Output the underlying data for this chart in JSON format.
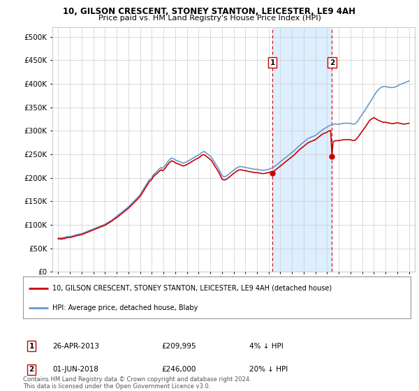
{
  "title": "10, GILSON CRESCENT, STONEY STANTON, LEICESTER, LE9 4AH",
  "subtitle": "Price paid vs. HM Land Registry's House Price Index (HPI)",
  "legend_line1": "10, GILSON CRESCENT, STONEY STANTON, LEICESTER, LE9 4AH (detached house)",
  "legend_line2": "HPI: Average price, detached house, Blaby",
  "annotation1_label": "1",
  "annotation1_date": "26-APR-2013",
  "annotation1_price": "£209,995",
  "annotation1_hpi": "4% ↓ HPI",
  "annotation2_label": "2",
  "annotation2_date": "01-JUN-2018",
  "annotation2_price": "£246,000",
  "annotation2_hpi": "20% ↓ HPI",
  "footer": "Contains HM Land Registry data © Crown copyright and database right 2024.\nThis data is licensed under the Open Government Licence v3.0.",
  "sale1_x": 2013.32,
  "sale1_y": 209995,
  "sale2_x": 2018.42,
  "sale2_y": 246000,
  "shade_xmin": 2013.32,
  "shade_xmax": 2018.42,
  "shade_color": "#ddeeff",
  "hpi_color": "#6699cc",
  "price_color": "#cc0000",
  "vline_color": "#cc0000",
  "vline_style": "--",
  "background_color": "#ffffff",
  "grid_color": "#cccccc",
  "ylim": [
    0,
    520000
  ],
  "xlim_left": 1994.5,
  "xlim_right": 2025.5,
  "yticks": [
    0,
    50000,
    100000,
    150000,
    200000,
    250000,
    300000,
    350000,
    400000,
    450000,
    500000
  ],
  "xticks": [
    1995,
    1996,
    1997,
    1998,
    1999,
    2000,
    2001,
    2002,
    2003,
    2004,
    2005,
    2006,
    2007,
    2008,
    2009,
    2010,
    2011,
    2012,
    2013,
    2014,
    2015,
    2016,
    2017,
    2018,
    2019,
    2020,
    2021,
    2022,
    2023,
    2024,
    2025
  ],
  "hpi_data": [
    [
      1995.0,
      72000
    ],
    [
      1995.1,
      71500
    ],
    [
      1995.2,
      72500
    ],
    [
      1995.3,
      71000
    ],
    [
      1995.4,
      73000
    ],
    [
      1995.5,
      72000
    ],
    [
      1995.6,
      74000
    ],
    [
      1995.7,
      73500
    ],
    [
      1995.8,
      75000
    ],
    [
      1995.9,
      74500
    ],
    [
      1996.0,
      75000
    ],
    [
      1996.2,
      76000
    ],
    [
      1996.4,
      77500
    ],
    [
      1996.6,
      79000
    ],
    [
      1996.8,
      80000
    ],
    [
      1997.0,
      81000
    ],
    [
      1997.2,
      83000
    ],
    [
      1997.4,
      85000
    ],
    [
      1997.6,
      87000
    ],
    [
      1997.8,
      89000
    ],
    [
      1998.0,
      91000
    ],
    [
      1998.2,
      93000
    ],
    [
      1998.4,
      95000
    ],
    [
      1998.6,
      97000
    ],
    [
      1998.8,
      99000
    ],
    [
      1999.0,
      101000
    ],
    [
      1999.2,
      104000
    ],
    [
      1999.4,
      107000
    ],
    [
      1999.6,
      110000
    ],
    [
      1999.8,
      114000
    ],
    [
      2000.0,
      118000
    ],
    [
      2000.2,
      122000
    ],
    [
      2000.4,
      126000
    ],
    [
      2000.6,
      130000
    ],
    [
      2000.8,
      134000
    ],
    [
      2001.0,
      138000
    ],
    [
      2001.2,
      143000
    ],
    [
      2001.4,
      148000
    ],
    [
      2001.6,
      153000
    ],
    [
      2001.8,
      158000
    ],
    [
      2002.0,
      164000
    ],
    [
      2002.2,
      172000
    ],
    [
      2002.4,
      180000
    ],
    [
      2002.6,
      188000
    ],
    [
      2002.8,
      196000
    ],
    [
      2003.0,
      200000
    ],
    [
      2003.1,
      205000
    ],
    [
      2003.2,
      208000
    ],
    [
      2003.3,
      210000
    ],
    [
      2003.4,
      212000
    ],
    [
      2003.5,
      215000
    ],
    [
      2003.6,
      218000
    ],
    [
      2003.7,
      220000
    ],
    [
      2003.8,
      222000
    ],
    [
      2003.9,
      220000
    ],
    [
      2004.0,
      222000
    ],
    [
      2004.1,
      225000
    ],
    [
      2004.2,
      228000
    ],
    [
      2004.3,
      232000
    ],
    [
      2004.4,
      235000
    ],
    [
      2004.5,
      238000
    ],
    [
      2004.6,
      240000
    ],
    [
      2004.7,
      242000
    ],
    [
      2004.8,
      241000
    ],
    [
      2004.9,
      240000
    ],
    [
      2005.0,
      238000
    ],
    [
      2005.1,
      237000
    ],
    [
      2005.2,
      236000
    ],
    [
      2005.3,
      235000
    ],
    [
      2005.4,
      234000
    ],
    [
      2005.5,
      233000
    ],
    [
      2005.6,
      232000
    ],
    [
      2005.7,
      231000
    ],
    [
      2005.8,
      232000
    ],
    [
      2005.9,
      233000
    ],
    [
      2006.0,
      234000
    ],
    [
      2006.2,
      237000
    ],
    [
      2006.4,
      240000
    ],
    [
      2006.6,
      243000
    ],
    [
      2006.8,
      246000
    ],
    [
      2007.0,
      248000
    ],
    [
      2007.1,
      250000
    ],
    [
      2007.2,
      252000
    ],
    [
      2007.3,
      254000
    ],
    [
      2007.4,
      255000
    ],
    [
      2007.5,
      256000
    ],
    [
      2007.6,
      254000
    ],
    [
      2007.7,
      252000
    ],
    [
      2007.8,
      250000
    ],
    [
      2007.9,
      248000
    ],
    [
      2008.0,
      246000
    ],
    [
      2008.1,
      244000
    ],
    [
      2008.2,
      240000
    ],
    [
      2008.3,
      236000
    ],
    [
      2008.4,
      232000
    ],
    [
      2008.5,
      228000
    ],
    [
      2008.6,
      224000
    ],
    [
      2008.7,
      220000
    ],
    [
      2008.8,
      215000
    ],
    [
      2008.9,
      210000
    ],
    [
      2009.0,
      205000
    ],
    [
      2009.1,
      203000
    ],
    [
      2009.2,
      202000
    ],
    [
      2009.3,
      203000
    ],
    [
      2009.4,
      204000
    ],
    [
      2009.5,
      206000
    ],
    [
      2009.6,
      208000
    ],
    [
      2009.7,
      210000
    ],
    [
      2009.8,
      212000
    ],
    [
      2009.9,
      214000
    ],
    [
      2010.0,
      216000
    ],
    [
      2010.2,
      220000
    ],
    [
      2010.4,
      223000
    ],
    [
      2010.6,
      224000
    ],
    [
      2010.8,
      223000
    ],
    [
      2011.0,
      222000
    ],
    [
      2011.2,
      221000
    ],
    [
      2011.4,
      220000
    ],
    [
      2011.6,
      219000
    ],
    [
      2011.8,
      218000
    ],
    [
      2012.0,
      218000
    ],
    [
      2012.2,
      217000
    ],
    [
      2012.4,
      216000
    ],
    [
      2012.6,
      216000
    ],
    [
      2012.8,
      217000
    ],
    [
      2013.0,
      218000
    ],
    [
      2013.1,
      219000
    ],
    [
      2013.2,
      220000
    ],
    [
      2013.32,
      221000
    ],
    [
      2013.4,
      222000
    ],
    [
      2013.5,
      224000
    ],
    [
      2013.6,
      226000
    ],
    [
      2013.7,
      228000
    ],
    [
      2013.8,
      230000
    ],
    [
      2013.9,
      232000
    ],
    [
      2014.0,
      234000
    ],
    [
      2014.2,
      238000
    ],
    [
      2014.4,
      242000
    ],
    [
      2014.6,
      246000
    ],
    [
      2014.8,
      250000
    ],
    [
      2015.0,
      254000
    ],
    [
      2015.2,
      258000
    ],
    [
      2015.4,
      263000
    ],
    [
      2015.6,
      268000
    ],
    [
      2015.8,
      272000
    ],
    [
      2016.0,
      276000
    ],
    [
      2016.2,
      280000
    ],
    [
      2016.4,
      284000
    ],
    [
      2016.6,
      286000
    ],
    [
      2016.8,
      288000
    ],
    [
      2017.0,
      290000
    ],
    [
      2017.2,
      294000
    ],
    [
      2017.4,
      298000
    ],
    [
      2017.6,
      302000
    ],
    [
      2017.8,
      305000
    ],
    [
      2018.0,
      308000
    ],
    [
      2018.1,
      310000
    ],
    [
      2018.2,
      311000
    ],
    [
      2018.3,
      312000
    ],
    [
      2018.42,
      312000
    ],
    [
      2018.5,
      313000
    ],
    [
      2018.6,
      314000
    ],
    [
      2018.7,
      315000
    ],
    [
      2018.8,
      314000
    ],
    [
      2018.9,
      314000
    ],
    [
      2019.0,
      314000
    ],
    [
      2019.2,
      315000
    ],
    [
      2019.4,
      316000
    ],
    [
      2019.6,
      316000
    ],
    [
      2019.8,
      316000
    ],
    [
      2020.0,
      316000
    ],
    [
      2020.2,
      314000
    ],
    [
      2020.4,
      315000
    ],
    [
      2020.6,
      320000
    ],
    [
      2020.8,
      328000
    ],
    [
      2021.0,
      335000
    ],
    [
      2021.2,
      342000
    ],
    [
      2021.4,
      350000
    ],
    [
      2021.6,
      358000
    ],
    [
      2021.8,
      366000
    ],
    [
      2022.0,
      374000
    ],
    [
      2022.2,
      382000
    ],
    [
      2022.4,
      388000
    ],
    [
      2022.6,
      392000
    ],
    [
      2022.8,
      394000
    ],
    [
      2023.0,
      394000
    ],
    [
      2023.2,
      393000
    ],
    [
      2023.4,
      392000
    ],
    [
      2023.6,
      392000
    ],
    [
      2023.8,
      393000
    ],
    [
      2024.0,
      395000
    ],
    [
      2024.2,
      398000
    ],
    [
      2024.4,
      400000
    ],
    [
      2024.6,
      402000
    ],
    [
      2024.8,
      404000
    ],
    [
      2025.0,
      406000
    ]
  ],
  "price_data": [
    [
      1995.0,
      70000
    ],
    [
      1995.1,
      69500
    ],
    [
      1995.2,
      70500
    ],
    [
      1995.3,
      69000
    ],
    [
      1995.4,
      71000
    ],
    [
      1995.5,
      70000
    ],
    [
      1995.6,
      72000
    ],
    [
      1995.7,
      71500
    ],
    [
      1995.8,
      73000
    ],
    [
      1995.9,
      72500
    ],
    [
      1996.0,
      73000
    ],
    [
      1996.2,
      74000
    ],
    [
      1996.4,
      75500
    ],
    [
      1996.6,
      77000
    ],
    [
      1996.8,
      78000
    ],
    [
      1997.0,
      79000
    ],
    [
      1997.2,
      81000
    ],
    [
      1997.4,
      83000
    ],
    [
      1997.6,
      85000
    ],
    [
      1997.8,
      87000
    ],
    [
      1998.0,
      89000
    ],
    [
      1998.2,
      91000
    ],
    [
      1998.4,
      93000
    ],
    [
      1998.6,
      95000
    ],
    [
      1998.8,
      97000
    ],
    [
      1999.0,
      99000
    ],
    [
      1999.2,
      102000
    ],
    [
      1999.4,
      105000
    ],
    [
      1999.6,
      108000
    ],
    [
      1999.8,
      112000
    ],
    [
      2000.0,
      115000
    ],
    [
      2000.2,
      119000
    ],
    [
      2000.4,
      123000
    ],
    [
      2000.6,
      127000
    ],
    [
      2000.8,
      131000
    ],
    [
      2001.0,
      135000
    ],
    [
      2001.2,
      140000
    ],
    [
      2001.4,
      145000
    ],
    [
      2001.6,
      150000
    ],
    [
      2001.8,
      155000
    ],
    [
      2002.0,
      160000
    ],
    [
      2002.2,
      168000
    ],
    [
      2002.4,
      176000
    ],
    [
      2002.6,
      184000
    ],
    [
      2002.8,
      192000
    ],
    [
      2003.0,
      196000
    ],
    [
      2003.1,
      201000
    ],
    [
      2003.2,
      204000
    ],
    [
      2003.3,
      206000
    ],
    [
      2003.4,
      208000
    ],
    [
      2003.5,
      210000
    ],
    [
      2003.6,
      213000
    ],
    [
      2003.7,
      215000
    ],
    [
      2003.8,
      217000
    ],
    [
      2003.9,
      215000
    ],
    [
      2004.0,
      216000
    ],
    [
      2004.1,
      219000
    ],
    [
      2004.2,
      222000
    ],
    [
      2004.3,
      226000
    ],
    [
      2004.4,
      229000
    ],
    [
      2004.5,
      232000
    ],
    [
      2004.6,
      234000
    ],
    [
      2004.7,
      236000
    ],
    [
      2004.8,
      235000
    ],
    [
      2004.9,
      234000
    ],
    [
      2005.0,
      232000
    ],
    [
      2005.1,
      231000
    ],
    [
      2005.2,
      230000
    ],
    [
      2005.3,
      229000
    ],
    [
      2005.4,
      228000
    ],
    [
      2005.5,
      227000
    ],
    [
      2005.6,
      226000
    ],
    [
      2005.7,
      225000
    ],
    [
      2005.8,
      226000
    ],
    [
      2005.9,
      227000
    ],
    [
      2006.0,
      228000
    ],
    [
      2006.2,
      231000
    ],
    [
      2006.4,
      234000
    ],
    [
      2006.6,
      237000
    ],
    [
      2006.8,
      240000
    ],
    [
      2007.0,
      242000
    ],
    [
      2007.1,
      244000
    ],
    [
      2007.2,
      246000
    ],
    [
      2007.3,
      248000
    ],
    [
      2007.4,
      249000
    ],
    [
      2007.5,
      249000
    ],
    [
      2007.6,
      247000
    ],
    [
      2007.7,
      245000
    ],
    [
      2007.8,
      243000
    ],
    [
      2007.9,
      241000
    ],
    [
      2008.0,
      239000
    ],
    [
      2008.1,
      237000
    ],
    [
      2008.2,
      233000
    ],
    [
      2008.3,
      229000
    ],
    [
      2008.4,
      225000
    ],
    [
      2008.5,
      221000
    ],
    [
      2008.6,
      217000
    ],
    [
      2008.7,
      213000
    ],
    [
      2008.8,
      208000
    ],
    [
      2008.9,
      203000
    ],
    [
      2009.0,
      198000
    ],
    [
      2009.1,
      196000
    ],
    [
      2009.2,
      195000
    ],
    [
      2009.3,
      196000
    ],
    [
      2009.4,
      197000
    ],
    [
      2009.5,
      199000
    ],
    [
      2009.6,
      201000
    ],
    [
      2009.7,
      203000
    ],
    [
      2009.8,
      205000
    ],
    [
      2009.9,
      207000
    ],
    [
      2010.0,
      209000
    ],
    [
      2010.2,
      213000
    ],
    [
      2010.4,
      216000
    ],
    [
      2010.6,
      217000
    ],
    [
      2010.8,
      216000
    ],
    [
      2011.0,
      215000
    ],
    [
      2011.2,
      214000
    ],
    [
      2011.4,
      213000
    ],
    [
      2011.6,
      212000
    ],
    [
      2011.8,
      211000
    ],
    [
      2012.0,
      211000
    ],
    [
      2012.2,
      210000
    ],
    [
      2012.4,
      209000
    ],
    [
      2012.6,
      209000
    ],
    [
      2012.8,
      210000
    ],
    [
      2013.0,
      211000
    ],
    [
      2013.1,
      212000
    ],
    [
      2013.2,
      212500
    ],
    [
      2013.32,
      209995
    ],
    [
      2013.4,
      213000
    ],
    [
      2013.5,
      215000
    ],
    [
      2013.6,
      217000
    ],
    [
      2013.7,
      219000
    ],
    [
      2013.8,
      221000
    ],
    [
      2013.9,
      223000
    ],
    [
      2014.0,
      225000
    ],
    [
      2014.2,
      229000
    ],
    [
      2014.4,
      233000
    ],
    [
      2014.6,
      237000
    ],
    [
      2014.8,
      241000
    ],
    [
      2015.0,
      245000
    ],
    [
      2015.2,
      249000
    ],
    [
      2015.4,
      254000
    ],
    [
      2015.6,
      259000
    ],
    [
      2015.8,
      263000
    ],
    [
      2016.0,
      267000
    ],
    [
      2016.2,
      271000
    ],
    [
      2016.4,
      275000
    ],
    [
      2016.6,
      277000
    ],
    [
      2016.8,
      279000
    ],
    [
      2017.0,
      281000
    ],
    [
      2017.2,
      285000
    ],
    [
      2017.4,
      289000
    ],
    [
      2017.6,
      293000
    ],
    [
      2017.8,
      295000
    ],
    [
      2018.0,
      297000
    ],
    [
      2018.1,
      299000
    ],
    [
      2018.2,
      300000
    ],
    [
      2018.3,
      301000
    ],
    [
      2018.42,
      246000
    ],
    [
      2018.5,
      276000
    ],
    [
      2018.6,
      278000
    ],
    [
      2018.7,
      279000
    ],
    [
      2018.8,
      279000
    ],
    [
      2018.9,
      279000
    ],
    [
      2019.0,
      279000
    ],
    [
      2019.2,
      280000
    ],
    [
      2019.4,
      281000
    ],
    [
      2019.6,
      281000
    ],
    [
      2019.8,
      281000
    ],
    [
      2020.0,
      281000
    ],
    [
      2020.2,
      279000
    ],
    [
      2020.4,
      280000
    ],
    [
      2020.6,
      285000
    ],
    [
      2020.8,
      292000
    ],
    [
      2021.0,
      299000
    ],
    [
      2021.2,
      306000
    ],
    [
      2021.4,
      313000
    ],
    [
      2021.6,
      321000
    ],
    [
      2021.8,
      325000
    ],
    [
      2022.0,
      328000
    ],
    [
      2022.2,
      325000
    ],
    [
      2022.4,
      322000
    ],
    [
      2022.6,
      320000
    ],
    [
      2022.8,
      318000
    ],
    [
      2023.0,
      318000
    ],
    [
      2023.2,
      317000
    ],
    [
      2023.4,
      316000
    ],
    [
      2023.6,
      315000
    ],
    [
      2023.8,
      316000
    ],
    [
      2024.0,
      317000
    ],
    [
      2024.2,
      316000
    ],
    [
      2024.4,
      315000
    ],
    [
      2024.6,
      314000
    ],
    [
      2024.8,
      315000
    ],
    [
      2025.0,
      316000
    ]
  ]
}
